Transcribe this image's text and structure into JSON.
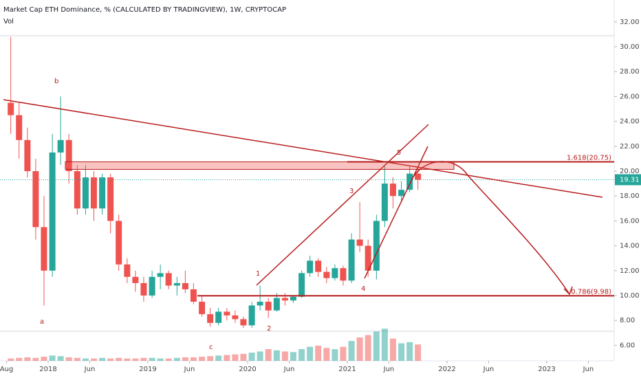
{
  "chart_data": {
    "type": "candlestick",
    "title": "Market Cap ETH Dominance, % (CALCULATED BY TRADINGVIEW), 1W, CRYPTOCAP",
    "subtitle": "Vol",
    "up_color": "#26a69a",
    "down_color": "#ef5350",
    "xlim": [
      2017.517,
      2023.676
    ],
    "ylim": [
      4.75,
      33.76
    ],
    "xticks": [
      {
        "value": 2017.583,
        "label": "Aug"
      },
      {
        "value": 2018,
        "label": "2018"
      },
      {
        "value": 2018.417,
        "label": "Jun"
      },
      {
        "value": 2019,
        "label": "2019"
      },
      {
        "value": 2019.417,
        "label": "Jun"
      },
      {
        "value": 2020,
        "label": "2020"
      },
      {
        "value": 2020.417,
        "label": "Jun"
      },
      {
        "value": 2021,
        "label": "2021"
      },
      {
        "value": 2021.417,
        "label": "Jun"
      },
      {
        "value": 2022,
        "label": "2022"
      },
      {
        "value": 2022.417,
        "label": "Jun"
      },
      {
        "value": 2023,
        "label": "2023"
      },
      {
        "value": 2023.417,
        "label": "Jun"
      }
    ],
    "yticks": [
      {
        "value": 6,
        "label": "6.00"
      },
      {
        "value": 8,
        "label": "8.00"
      },
      {
        "value": 10,
        "label": "10.00"
      },
      {
        "value": 12,
        "label": "12.00"
      },
      {
        "value": 14,
        "label": "14.00"
      },
      {
        "value": 16,
        "label": "16.00"
      },
      {
        "value": 18,
        "label": "18.00"
      },
      {
        "value": 20,
        "label": "20.00"
      },
      {
        "value": 22,
        "label": "22.00"
      },
      {
        "value": 24,
        "label": "24.00"
      },
      {
        "value": 26,
        "label": "26.00"
      },
      {
        "value": 28,
        "label": "28.00"
      },
      {
        "value": 30,
        "label": "30.00"
      },
      {
        "value": 32,
        "label": "32.00"
      }
    ],
    "last_price": 19.31,
    "candles": {
      "x": [
        2017.625,
        2017.708,
        2017.792,
        2017.875,
        2017.958,
        2018.042,
        2018.125,
        2018.208,
        2018.292,
        2018.375,
        2018.458,
        2018.542,
        2018.625,
        2018.708,
        2018.792,
        2018.875,
        2018.958,
        2019.042,
        2019.125,
        2019.208,
        2019.292,
        2019.375,
        2019.458,
        2019.542,
        2019.625,
        2019.708,
        2019.792,
        2019.875,
        2019.958,
        2020.042,
        2020.125,
        2020.208,
        2020.292,
        2020.375,
        2020.458,
        2020.542,
        2020.625,
        2020.708,
        2020.792,
        2020.875,
        2020.958,
        2021.042,
        2021.125,
        2021.208,
        2021.292,
        2021.375,
        2021.458,
        2021.542,
        2021.625,
        2021.708
      ],
      "open": [
        25.5,
        24.5,
        22.5,
        20,
        15.5,
        12,
        21.5,
        22.5,
        20,
        17,
        19.5,
        17,
        19.5,
        16,
        12.5,
        11.5,
        11,
        10,
        11.5,
        11.8,
        10.8,
        11,
        10.5,
        9.5,
        8.5,
        7.8,
        8.7,
        8.4,
        8.1,
        7.6,
        9.2,
        9.5,
        8.8,
        9.8,
        9.6,
        9.9,
        11.8,
        12.8,
        11.9,
        11.4,
        12.2,
        11.2,
        14.5,
        14,
        12,
        16,
        19,
        18,
        18.5,
        19.8
      ],
      "high": [
        30.8,
        25.5,
        23.5,
        21,
        18,
        23,
        26,
        23,
        20.5,
        20.5,
        20,
        19.8,
        19.8,
        16.5,
        13,
        12,
        11.5,
        12,
        12.5,
        12,
        11.5,
        12,
        11,
        10,
        9,
        9,
        9,
        8.8,
        8.3,
        9.5,
        10.8,
        9.8,
        10.2,
        10.2,
        10,
        12,
        13.2,
        13,
        12.3,
        12.5,
        12.4,
        15,
        17.5,
        14.5,
        16.5,
        20.5,
        19.5,
        19.2,
        20.4,
        20.3
      ],
      "low": [
        23,
        21,
        19.5,
        14.5,
        9.2,
        11.5,
        20.5,
        19,
        16.5,
        16.5,
        16,
        16.5,
        15,
        12,
        11,
        10.3,
        9.5,
        9.8,
        10.5,
        10.5,
        10,
        10.2,
        9.3,
        8.3,
        7.5,
        7.6,
        8,
        7.8,
        7.4,
        7.4,
        8.8,
        8.2,
        8.7,
        9.2,
        9.4,
        9.8,
        11.5,
        11.5,
        11,
        11.2,
        10.8,
        11,
        13.5,
        11.5,
        11.3,
        15.5,
        17,
        17.5,
        18.3,
        18.5
      ],
      "close": [
        24.5,
        22.5,
        20,
        15.5,
        12,
        21.5,
        22.5,
        20,
        17,
        19.5,
        17,
        19.5,
        16,
        12.5,
        11.5,
        11,
        10,
        11.5,
        11.8,
        10.8,
        11,
        10.5,
        9.5,
        8.5,
        7.8,
        8.7,
        8.4,
        8.1,
        7.6,
        9.2,
        9.5,
        8.8,
        9.8,
        9.6,
        9.9,
        11.8,
        12.8,
        11.9,
        11.4,
        12.2,
        11.2,
        14.5,
        14,
        12,
        16,
        19,
        18,
        18.5,
        19.8,
        19.31
      ],
      "volume": [
        4,
        5,
        6,
        5,
        7,
        9,
        8,
        6,
        5,
        4,
        4,
        5,
        4,
        5,
        4,
        4,
        5,
        5,
        4,
        4,
        5,
        6,
        6,
        7,
        8,
        9,
        10,
        11,
        12,
        14,
        16,
        20,
        18,
        16,
        15,
        20,
        24,
        26,
        22,
        20,
        24,
        34,
        40,
        44,
        50,
        55,
        38,
        30,
        32,
        28
      ]
    },
    "fib_levels": [
      {
        "value": 20.75,
        "label": "1.618(20.75)"
      },
      {
        "value": 9.98,
        "label": "0.786(9.98)"
      }
    ],
    "wave_labels": [
      "a",
      "b",
      "c",
      "1",
      "2",
      "3",
      "4",
      "5"
    ]
  }
}
